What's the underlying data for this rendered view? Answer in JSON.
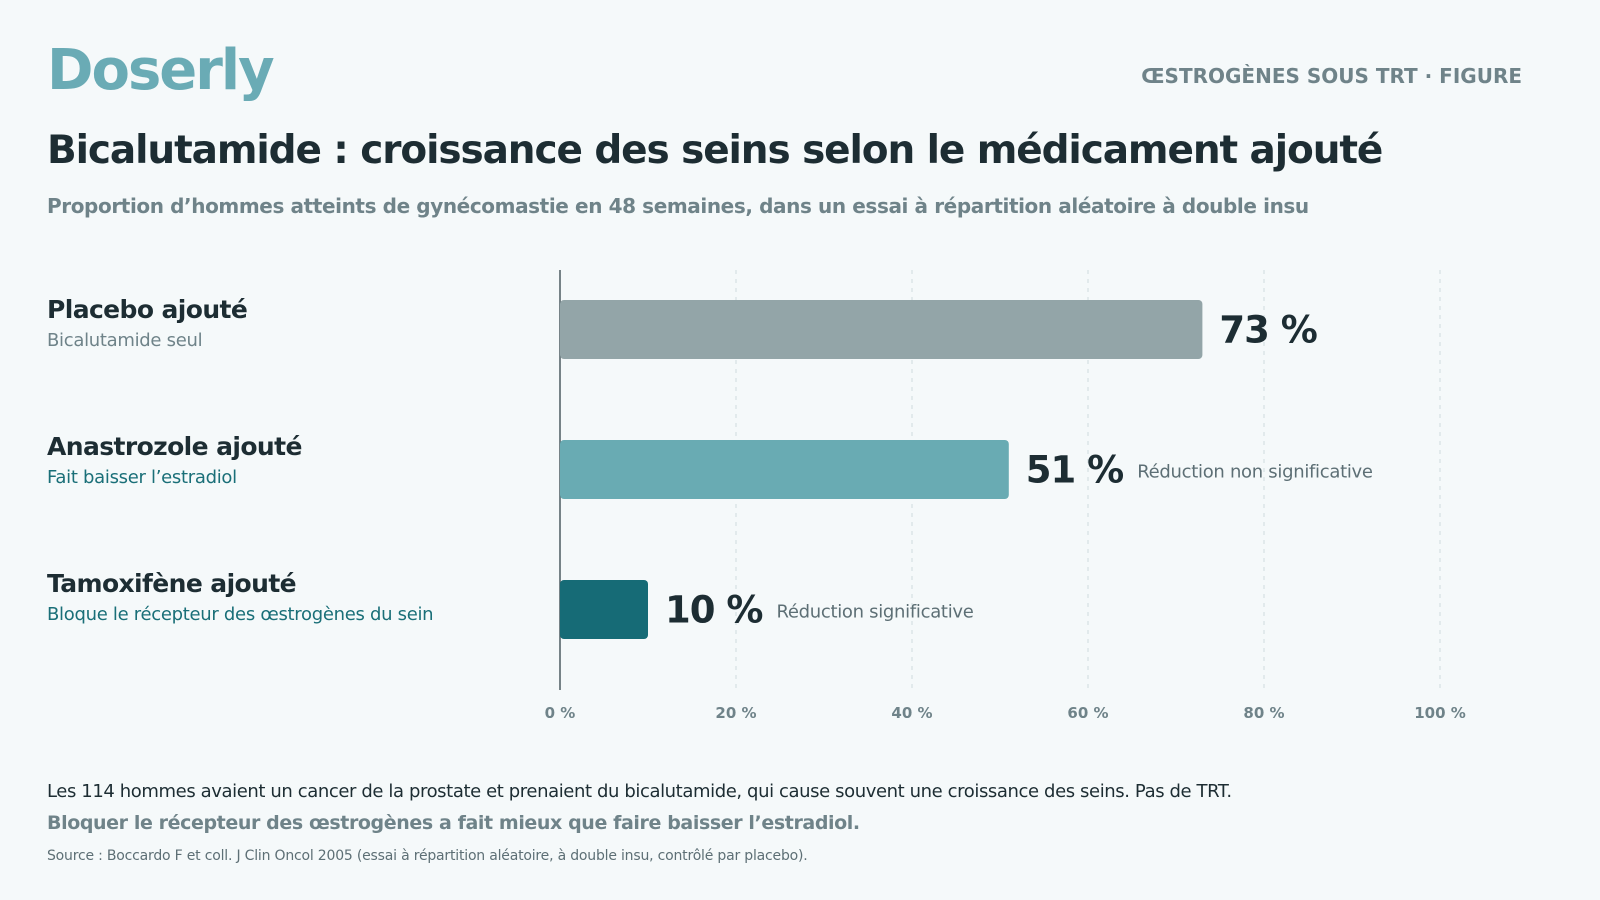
{
  "header": {
    "logo": "Doserly",
    "tag": "ŒSTROGÈNES SOUS TRT · FIGURE"
  },
  "chart_data": {
    "type": "bar",
    "orientation": "horizontal",
    "title": "Bicalutamide : croissance des seins selon le médicament ajouté",
    "subtitle": "Proportion d’hommes atteints de gynécomastie en 48 semaines, dans un essai à répartition aléatoire à double insu",
    "categories": [
      "Placebo ajouté",
      "Anastrozole ajouté",
      "Tamoxifène ajouté"
    ],
    "category_notes": [
      "Bicalutamide seul",
      "Fait baisser l’estradiol",
      "Bloque le récepteur des œstrogènes du sein"
    ],
    "values": [
      73,
      51,
      10
    ],
    "value_labels": [
      "73 %",
      "51 %",
      "10 %"
    ],
    "annotations": [
      "",
      "Réduction non significative",
      "Réduction significative"
    ],
    "bar_colors": [
      "#93a5a8",
      "#69abb3",
      "#166b76"
    ],
    "xlim": [
      0,
      100
    ],
    "x_ticks": [
      0,
      20,
      40,
      60,
      80,
      100
    ],
    "x_tick_labels": [
      "0 %",
      "20 %",
      "40 %",
      "60 %",
      "80 %",
      "100 %"
    ],
    "grid": "vertical dashed"
  },
  "footer": {
    "note": "Les 114 hommes avaient un cancer de la prostate et prenaient du bicalutamide, qui cause souvent une croissance des seins. Pas de TRT.",
    "takeaway": "Bloquer le récepteur des œstrogènes a fait mieux que faire baisser l’estradiol.",
    "source": "Source : Boccardo F et coll. J Clin Oncol 2005 (essai à répartition aléatoire, à double insu, contrôlé par placebo)."
  }
}
